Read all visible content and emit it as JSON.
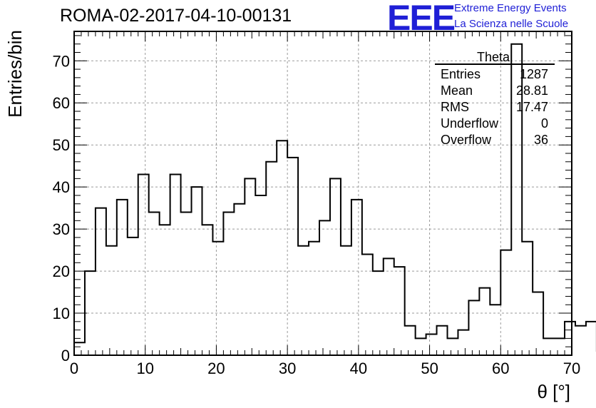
{
  "header": {
    "run_title": "ROMA-02-2017-04-10-00131",
    "logo_text": "EEE",
    "logo_line1": "Extreme Energy Events",
    "logo_line2": "La Scienza nelle Scuole"
  },
  "stats": {
    "title": "Theta",
    "rows": [
      {
        "label": "Entries",
        "value": "1287"
      },
      {
        "label": "Mean",
        "value": "28.81"
      },
      {
        "label": "RMS",
        "value": "17.47"
      },
      {
        "label": "Underflow",
        "value": "0"
      },
      {
        "label": "Overflow",
        "value": "36"
      }
    ]
  },
  "colors": {
    "logo": "#1f1fd6",
    "line": "#000000",
    "grid": "#9a9a9a"
  },
  "chart_data": {
    "type": "histogram",
    "title": "ROMA-02-2017-04-10-00131",
    "xlabel": "θ [°]",
    "ylabel": "Entries/bin",
    "xlim": [
      0,
      70
    ],
    "ylim": [
      0,
      77
    ],
    "grid": true,
    "x_ticks": [
      0,
      10,
      20,
      30,
      40,
      50,
      60,
      70
    ],
    "y_ticks": [
      0,
      10,
      20,
      30,
      40,
      50,
      60,
      70
    ],
    "bin_width": 1.5,
    "bin_edges_start": 0,
    "counts": [
      3,
      20,
      35,
      26,
      37,
      28,
      43,
      34,
      31,
      43,
      34,
      40,
      31,
      27,
      34,
      36,
      42,
      38,
      46,
      51,
      47,
      26,
      27,
      32,
      42,
      26,
      37,
      24,
      20,
      23,
      21,
      7,
      4,
      5,
      7,
      4,
      6,
      13,
      16,
      12,
      25,
      74,
      27,
      15,
      4,
      4,
      8,
      7,
      8,
      1
    ]
  }
}
